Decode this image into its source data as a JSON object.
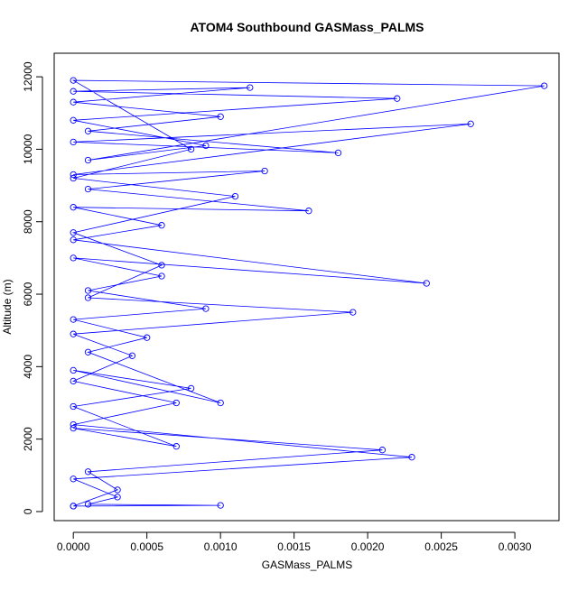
{
  "chart_data": {
    "type": "line",
    "markers": "open-circle",
    "title": "ATOM4 Southbound GASMass_PALMS",
    "xlabel": "GASMass_PALMS",
    "ylabel": "Altitude (m)",
    "xlim": [
      -0.00013,
      0.0033
    ],
    "ylim": [
      -250,
      12650
    ],
    "x_ticks": [
      0,
      0.0005,
      0.001,
      0.0015,
      0.002,
      0.0025,
      0.003
    ],
    "x_tick_labels": [
      "0.0000",
      "0.0005",
      "0.0010",
      "0.0015",
      "0.0020",
      "0.0025",
      "0.0030"
    ],
    "y_ticks": [
      0,
      2000,
      4000,
      6000,
      8000,
      10000,
      12000
    ],
    "y_tick_labels": [
      "0",
      "2000",
      "4000",
      "6000",
      "8000",
      "10000",
      "12000"
    ],
    "grid": false,
    "legend": "none",
    "colors": {
      "series": "#0000ff",
      "axis": "#000000"
    },
    "series": [
      {
        "x": [
          0.0,
          0.0003,
          0.0001,
          0.0021,
          0.0,
          0.0007,
          0.0,
          0.0008,
          0.0,
          0.001,
          0.0001,
          0.0005,
          0.0,
          0.0009,
          0.0001,
          0.0006,
          0.0,
          0.0024,
          0.0,
          0.0006,
          0.0,
          0.0016,
          0.0001,
          0.0013,
          0.0,
          0.0027,
          0.0,
          0.0018,
          0.0001,
          0.001,
          0.0,
          0.0012,
          0.0,
          0.0022,
          0.0,
          0.0009,
          0.0001,
          0.0032,
          0.0,
          0.0008,
          0.0,
          0.0011,
          0.0,
          0.0006,
          0.0001,
          0.0019,
          0.0,
          0.0004,
          0.0,
          0.0007,
          0.0,
          0.0023,
          0.0,
          0.0003,
          0.0001,
          0.001,
          0.0
        ],
        "y": [
          150,
          600,
          1100,
          1700,
          2300,
          1800,
          2900,
          3400,
          3900,
          3000,
          4400,
          4800,
          5300,
          5600,
          6100,
          6500,
          7000,
          6300,
          7500,
          7900,
          8400,
          8300,
          8900,
          9400,
          9300,
          10700,
          10200,
          9900,
          10500,
          10900,
          11300,
          11700,
          11600,
          11400,
          10800,
          10100,
          9700,
          11750,
          11900,
          10000,
          9200,
          8700,
          7700,
          6800,
          5900,
          5500,
          4900,
          4300,
          3600,
          3000,
          2400,
          1500,
          900,
          400,
          200,
          170,
          150
        ]
      }
    ]
  }
}
